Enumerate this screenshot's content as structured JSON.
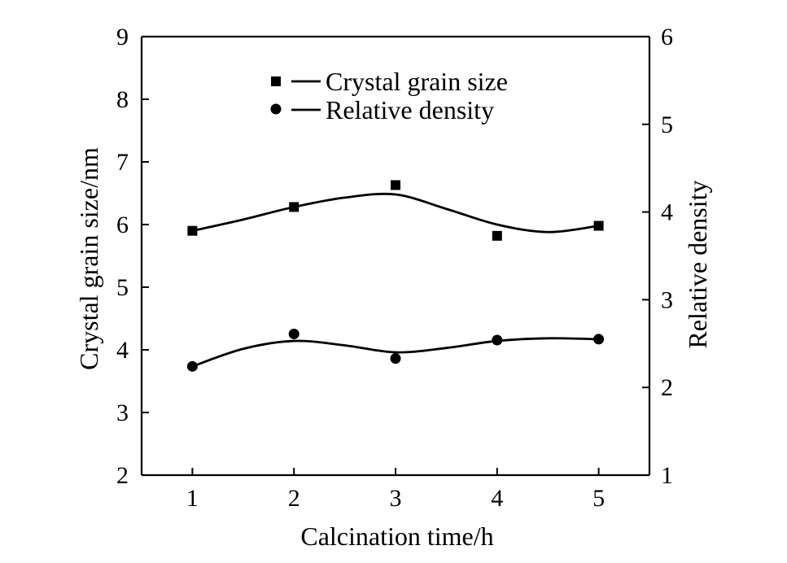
{
  "chart_data": {
    "type": "line",
    "title": "",
    "xlabel": "Calcination time/h",
    "ylabel": "Crystal grain size/nm",
    "ylabel_right": "Relative density",
    "xlim": [
      0.5,
      5.5
    ],
    "ylim": [
      2,
      9
    ],
    "ylim_right": [
      1,
      6
    ],
    "x_ticks": [
      "1",
      "2",
      "3",
      "4",
      "5"
    ],
    "y_ticks": [
      "2",
      "3",
      "4",
      "5",
      "6",
      "7",
      "8",
      "9"
    ],
    "y_ticks_right": [
      "1",
      "2",
      "3",
      "4",
      "5",
      "6"
    ],
    "grid": false,
    "legend_position": "top-center",
    "x": [
      1,
      2,
      3,
      4,
      5
    ],
    "series": [
      {
        "name": "Crystal grain size",
        "marker": "square",
        "axis": "left",
        "values": [
          5.9,
          6.28,
          6.63,
          5.82,
          5.98
        ],
        "fit_curve": [
          [
            1,
            5.9
          ],
          [
            1.5,
            6.08
          ],
          [
            2,
            6.28
          ],
          [
            2.5,
            6.43
          ],
          [
            3,
            6.48
          ],
          [
            3.5,
            6.25
          ],
          [
            4,
            6.0
          ],
          [
            4.5,
            5.88
          ],
          [
            5,
            5.98
          ]
        ]
      },
      {
        "name": "Relative density",
        "marker": "circle",
        "axis": "right",
        "values": [
          2.24,
          2.61,
          2.33,
          2.54,
          2.55
        ],
        "fit_curve": [
          [
            1,
            2.24
          ],
          [
            1.5,
            2.44
          ],
          [
            2,
            2.53
          ],
          [
            2.5,
            2.48
          ],
          [
            3,
            2.4
          ],
          [
            3.5,
            2.45
          ],
          [
            4,
            2.53
          ],
          [
            4.5,
            2.56
          ],
          [
            5,
            2.55
          ]
        ]
      }
    ]
  }
}
